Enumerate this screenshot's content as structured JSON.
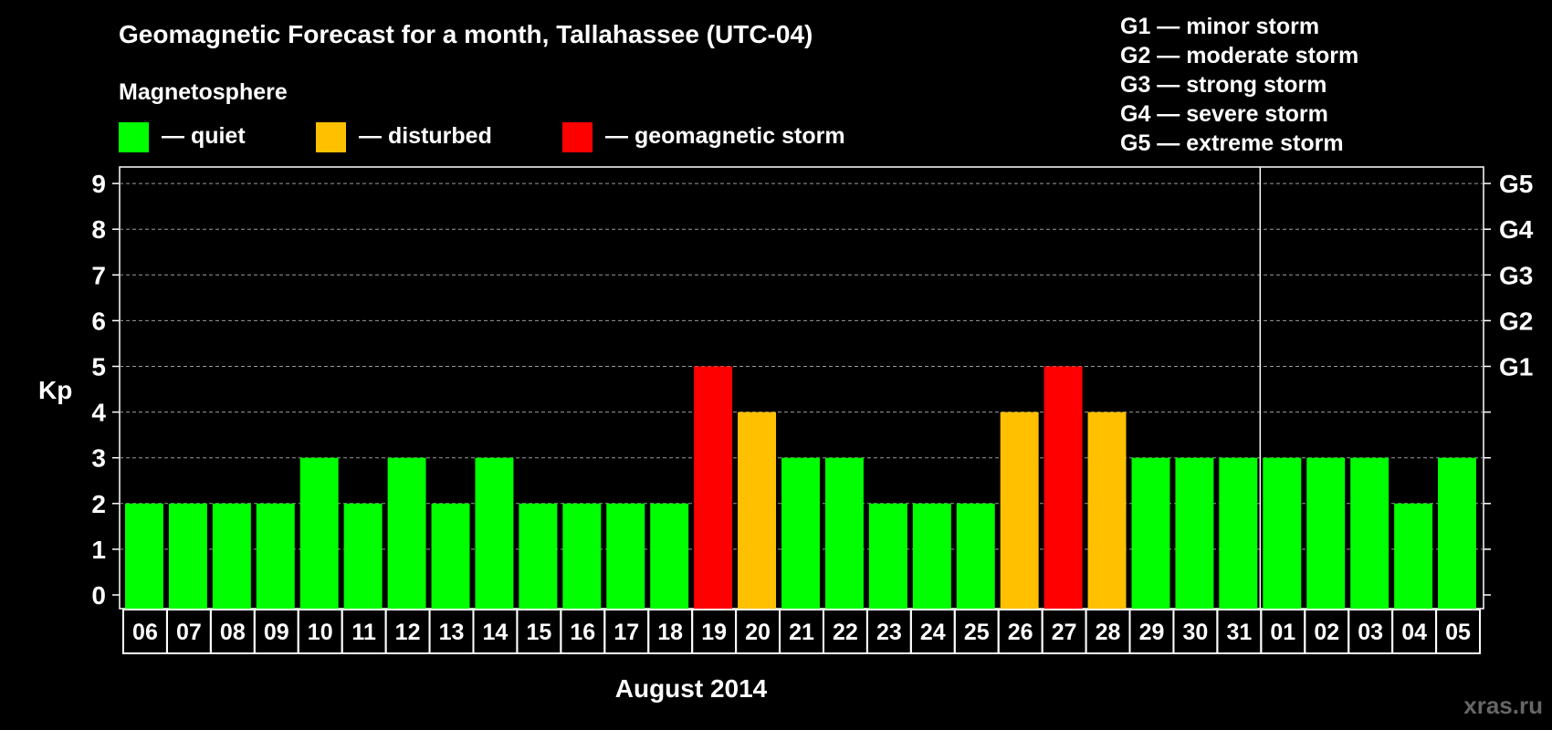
{
  "chart_data": {
    "type": "bar",
    "title": "Geomagnetic Forecast for a month, Tallahassee (UTC-04)",
    "subtitle": "Magnetosphere",
    "legend": [
      {
        "label": "— quiet",
        "color": "#00ff00"
      },
      {
        "label": "— disturbed",
        "color": "#ffc000"
      },
      {
        "label": "— geomagnetic storm",
        "color": "#ff0000"
      }
    ],
    "storm_scale": [
      "G1 — minor storm",
      "G2 — moderate storm",
      "G3 — strong storm",
      "G4 — severe storm",
      "G5 — extreme storm"
    ],
    "ylabel": "Kp",
    "xlabel": "August 2014",
    "ylim": [
      0,
      9
    ],
    "y_ticks": [
      "0",
      "1",
      "2",
      "3",
      "4",
      "5",
      "6",
      "7",
      "8",
      "9"
    ],
    "right_ticks": [
      {
        "value": 5,
        "label": "G1"
      },
      {
        "value": 6,
        "label": "G2"
      },
      {
        "value": 7,
        "label": "G3"
      },
      {
        "value": 8,
        "label": "G4"
      },
      {
        "value": 9,
        "label": "G5"
      }
    ],
    "categories": [
      "06",
      "07",
      "08",
      "09",
      "10",
      "11",
      "12",
      "13",
      "14",
      "15",
      "16",
      "17",
      "18",
      "19",
      "20",
      "21",
      "22",
      "23",
      "24",
      "25",
      "26",
      "27",
      "28",
      "29",
      "30",
      "31",
      "01",
      "02",
      "03",
      "04",
      "05"
    ],
    "values": [
      2,
      2,
      2,
      2,
      3,
      2,
      3,
      2,
      3,
      2,
      2,
      2,
      2,
      5,
      4,
      3,
      3,
      2,
      2,
      2,
      4,
      5,
      4,
      3,
      3,
      3,
      3,
      3,
      3,
      2,
      3
    ],
    "levels": [
      "quiet",
      "quiet",
      "quiet",
      "quiet",
      "quiet",
      "quiet",
      "quiet",
      "quiet",
      "quiet",
      "quiet",
      "quiet",
      "quiet",
      "quiet",
      "storm",
      "disturbed",
      "quiet",
      "quiet",
      "quiet",
      "quiet",
      "quiet",
      "disturbed",
      "storm",
      "disturbed",
      "quiet",
      "quiet",
      "quiet",
      "quiet",
      "quiet",
      "quiet",
      "quiet",
      "quiet"
    ],
    "colors": {
      "quiet": "#00ff00",
      "disturbed": "#ffc000",
      "storm": "#ff0000"
    },
    "month_break_after": "31",
    "grid": true
  },
  "watermark": "xras.ru"
}
